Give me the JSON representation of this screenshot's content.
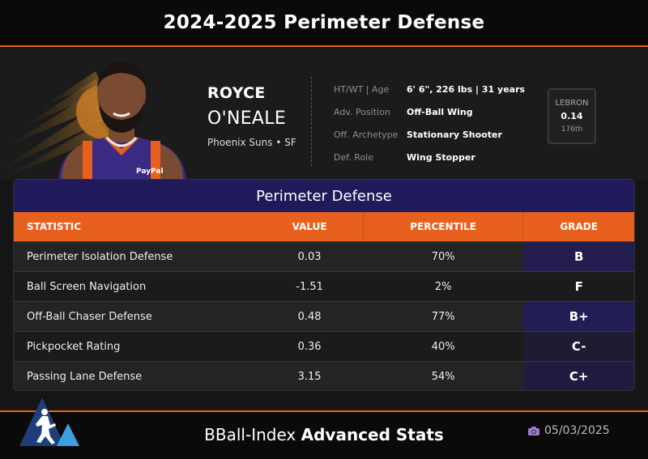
{
  "header": {
    "title": "2024-2025 Perimeter Defense"
  },
  "player": {
    "first_name": "ROYCE",
    "last_name": "O'NEALE",
    "team_line": "Phoenix Suns • SF",
    "jersey_sponsor": "PayPal"
  },
  "info": [
    {
      "label": "HT/WT | Age",
      "value": "6' 6\", 226 lbs | 31 years"
    },
    {
      "label": "Adv. Position",
      "value": "Off-Ball Wing"
    },
    {
      "label": "Off. Archetype",
      "value": "Stationary Shooter"
    },
    {
      "label": "Def. Role",
      "value": "Wing Stopper"
    }
  ],
  "lebron": {
    "label": "LEBRON",
    "value": "0.14",
    "rank": "176th"
  },
  "panel": {
    "title": "Perimeter Defense",
    "columns": [
      "STATISTIC",
      "VALUE",
      "PERCENTILE",
      "GRADE"
    ],
    "rows": [
      {
        "stat": "Perimeter Isolation Defense",
        "value": "0.03",
        "percentile": "70%",
        "grade": "B",
        "grade_bg": "#221d4e"
      },
      {
        "stat": "Ball Screen Navigation",
        "value": "-1.51",
        "percentile": "2%",
        "grade": "F",
        "grade_bg": "#1b1b1b"
      },
      {
        "stat": "Off-Ball Chaser Defense",
        "value": "0.48",
        "percentile": "77%",
        "grade": "B+",
        "grade_bg": "#231d55"
      },
      {
        "stat": "Pickpocket Rating",
        "value": "0.36",
        "percentile": "40%",
        "grade": "C-",
        "grade_bg": "#1f1b33"
      },
      {
        "stat": "Passing Lane Defense",
        "value": "3.15",
        "percentile": "54%",
        "grade": "C+",
        "grade_bg": "#211c3f"
      }
    ]
  },
  "footer": {
    "brand_prefix": "BBall-Index",
    "brand_bold": "Advanced Stats",
    "date": "05/03/2025"
  },
  "colors": {
    "accent": "#e8601e",
    "panel_title_bg": "#201a5a",
    "suns_orange": "#e56020",
    "suns_purple": "#3b2a84"
  },
  "icons": {
    "team_logo": "phoenix-suns-logo-icon",
    "brand_logo": "bball-index-logo-icon",
    "date": "camera-icon"
  }
}
